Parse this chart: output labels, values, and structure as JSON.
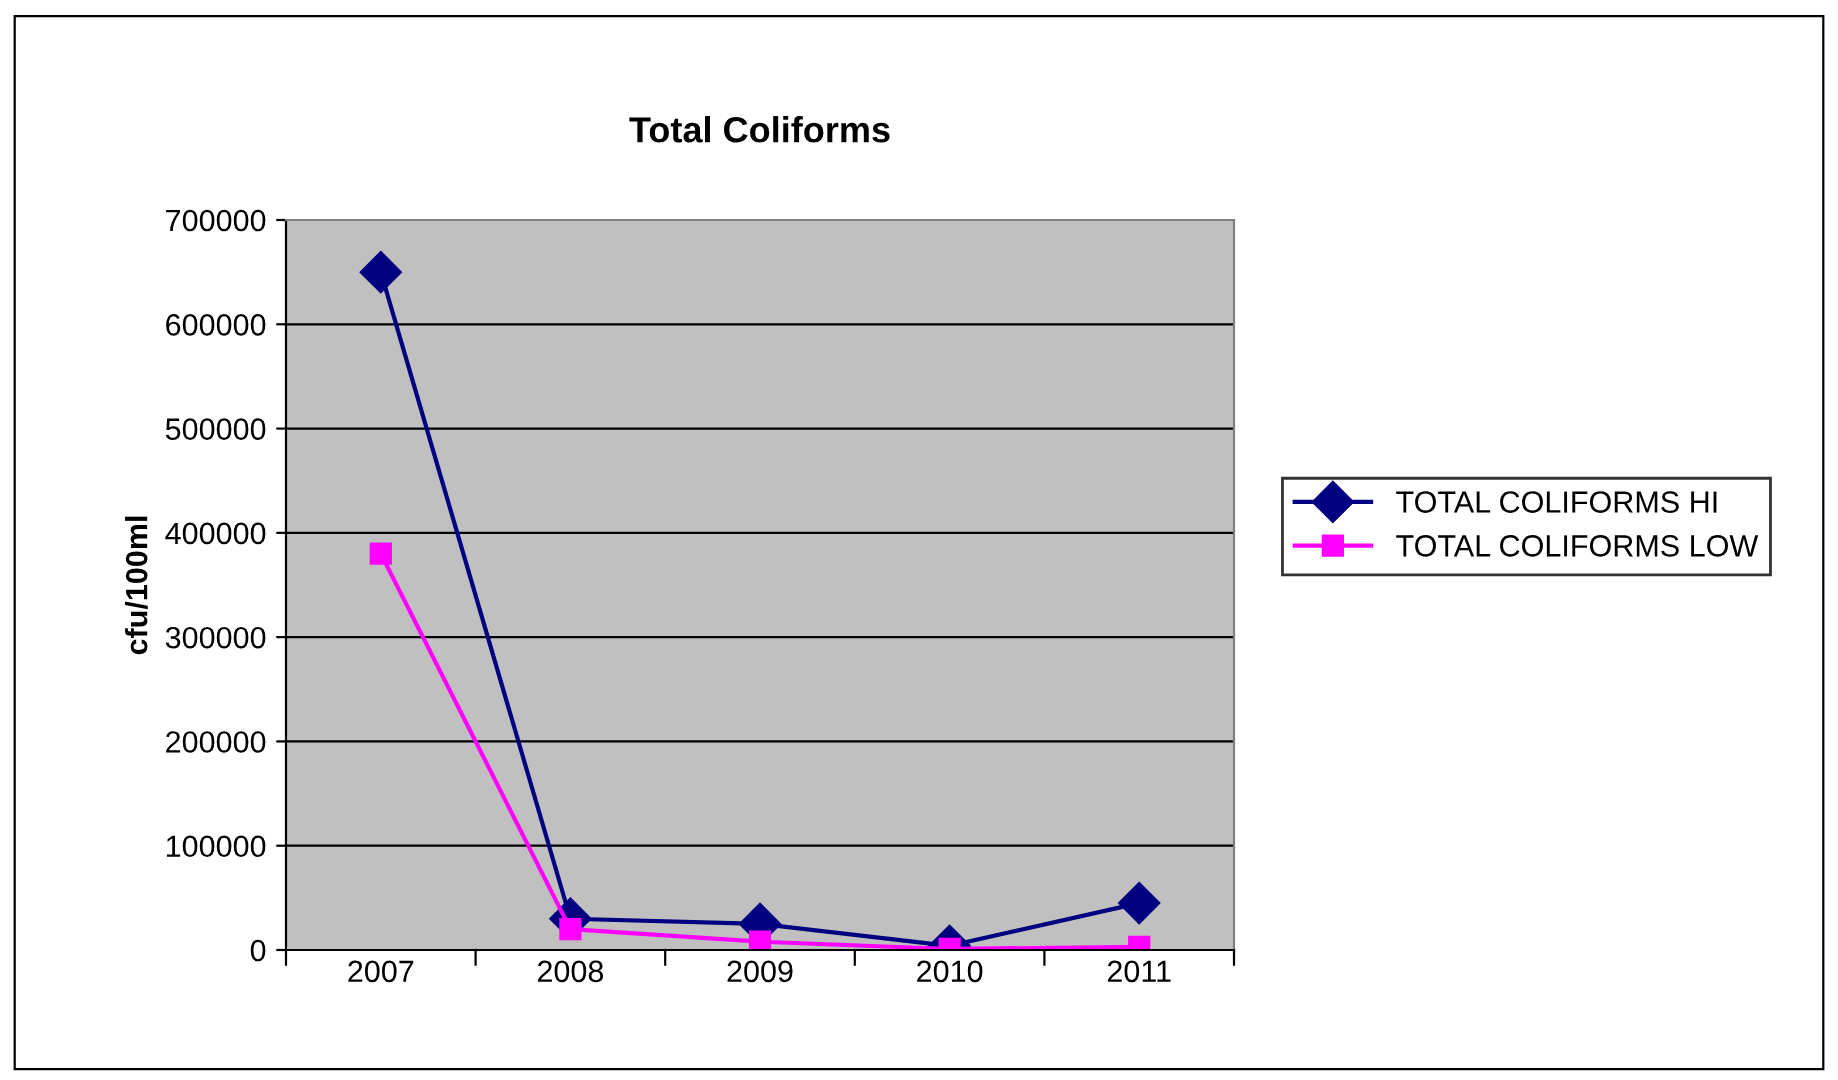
{
  "chart_data": {
    "type": "line",
    "title": "Total Coliforms",
    "ylabel": "cfu/100ml",
    "categories": [
      "2007",
      "2008",
      "2009",
      "2010",
      "2011"
    ],
    "series": [
      {
        "name": "TOTAL COLIFORMS HI",
        "color": "#000080",
        "marker": "diamond",
        "values": [
          650000,
          30000,
          25000,
          4000,
          45000
        ]
      },
      {
        "name": "TOTAL COLIFORMS LOW",
        "color": "#ff00ff",
        "marker": "square",
        "values": [
          380000,
          20000,
          8000,
          1000,
          3000
        ]
      }
    ],
    "ylim": [
      0,
      700000
    ],
    "yticks": [
      0,
      100000,
      200000,
      300000,
      400000,
      500000,
      600000,
      700000
    ],
    "grid": "y",
    "legend": "right",
    "line_style": "solid"
  }
}
